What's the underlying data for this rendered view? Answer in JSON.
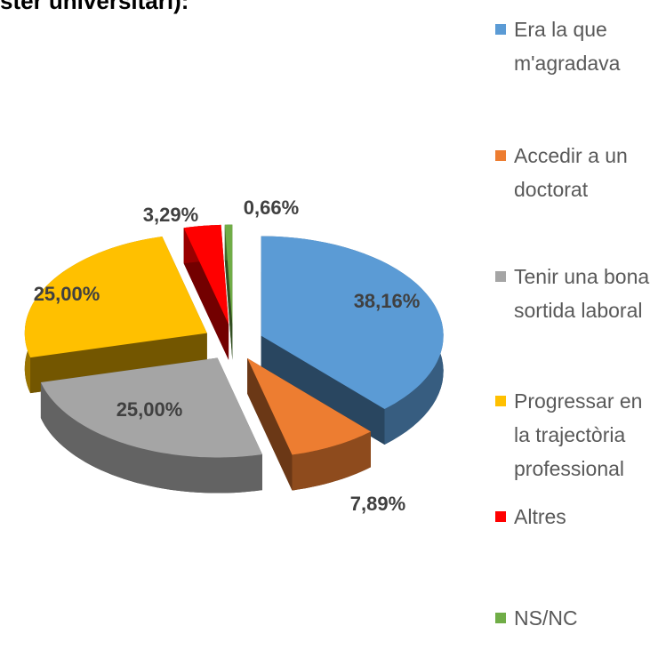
{
  "chart_data": {
    "type": "pie",
    "title": "ster universitari):",
    "categories": [
      "Era la que m'agradava",
      "Accedir a un doctorat",
      "Tenir una bona sortida laboral",
      "Progressar en la trajectòria professional",
      "Altres",
      "NS/NC"
    ],
    "values": [
      38.16,
      7.89,
      25.0,
      25.0,
      3.29,
      0.66
    ],
    "value_labels": [
      "38,16%",
      "7,89%",
      "25,00%",
      "25,00%",
      "3,29%",
      "0,66%"
    ],
    "colors": [
      "#5b9bd5",
      "#ed7d31",
      "#a5a5a5",
      "#ffc000",
      "#ff0000",
      "#70ad47"
    ],
    "legend": "right"
  }
}
